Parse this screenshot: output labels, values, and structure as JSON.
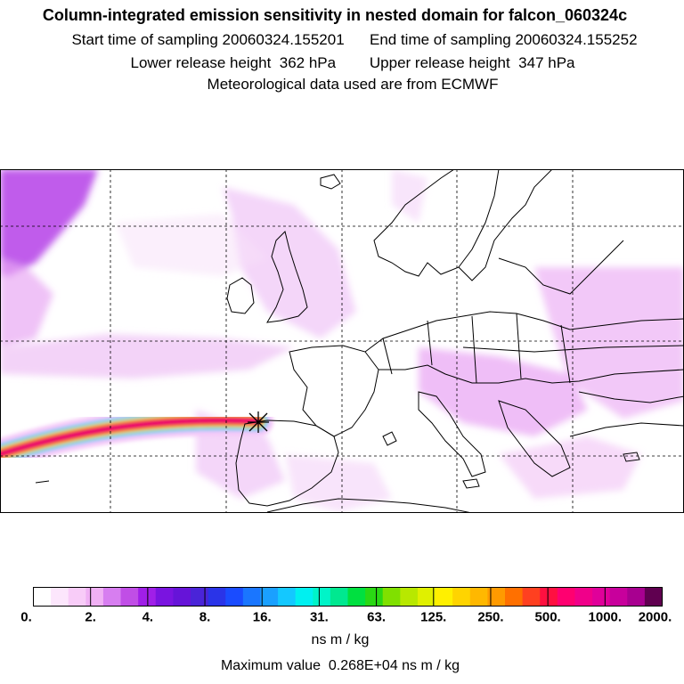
{
  "title": {
    "line1": "Column-integrated emission sensitivity in nested domain for falcon_060324c",
    "line2": "Start time of sampling 20060324.155201      End time of sampling 20060324.155252",
    "line3": "Lower release height  362 hPa        Upper release height  347 hPa",
    "line4": "Meteorological data used are from ECMWF"
  },
  "map": {
    "release_marker": "release-location-cross-icon"
  },
  "legend": {
    "ticks": [
      "0.",
      "2.",
      "4.",
      "8.",
      "16.",
      "31.",
      "63.",
      "125.",
      "250.",
      "500.",
      "1000.",
      "2000."
    ],
    "colors": [
      "#ffffff",
      "#fce6fc",
      "#f8ccf8",
      "#f0b0f4",
      "#d77ef0",
      "#c04ee6",
      "#a01fe8",
      "#7a14e0",
      "#6614d8",
      "#4a24d8",
      "#2a34e8",
      "#1a4cff",
      "#1a76ff",
      "#1aa0ff",
      "#14c8ff",
      "#00f0f0",
      "#00f4c8",
      "#00e890",
      "#00e040",
      "#2ad814",
      "#80e000",
      "#b8e800",
      "#e0f000",
      "#fff000",
      "#ffd400",
      "#ffb800",
      "#ff9a00",
      "#ff7000",
      "#ff4020",
      "#ff1040",
      "#ff0070",
      "#f0008a",
      "#e0009a",
      "#c8009c",
      "#a80090",
      "#600050"
    ],
    "unit": "ns m / kg",
    "max_value": "Maximum value  0.268E+04 ns m / kg"
  }
}
